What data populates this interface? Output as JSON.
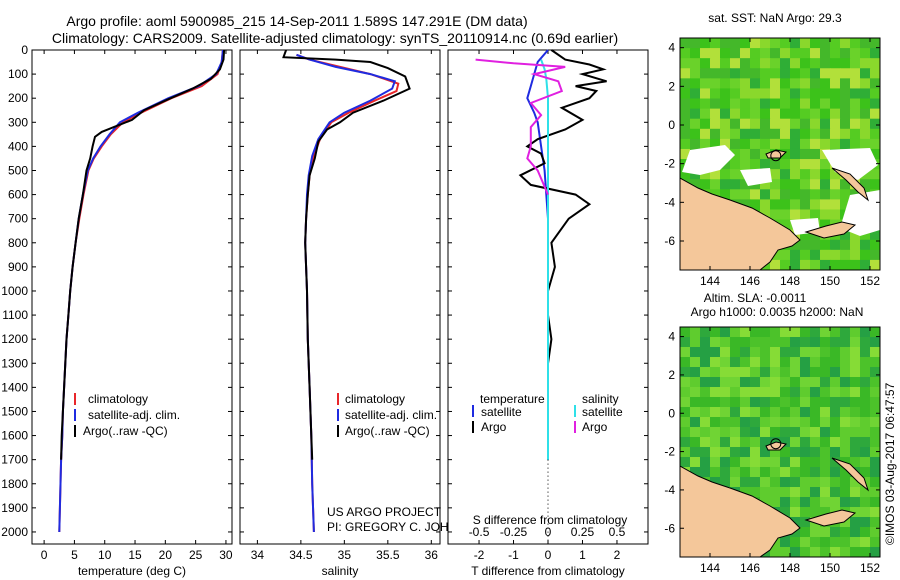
{
  "title_line1": "Argo profile: aoml 5900985_215 14-Sep-2011 1.589S 147.291E (DM data)",
  "title_line2": "Climatology: CARS2009. Satellite-adjusted climatology: synTS_20110914.nc (0.69d earlier)",
  "credit_line1": "US ARGO PROJECT",
  "credit_line2": "PI: GREGORY C. JOHNSON",
  "watermark": "©IMOS 03-Aug-2017 06:47:57",
  "colors": {
    "climatology": "#e8262a",
    "satellite": "#1f2be0",
    "argo": "#000000",
    "sal_satellite": "#2fe0e8",
    "sal_argo": "#e020e0",
    "land": "#f4c79a"
  },
  "chart_data": [
    {
      "id": "temperature",
      "type": "line",
      "xlabel": "temperature (deg C)",
      "ylabel": "depth",
      "xlim": [
        -2,
        31
      ],
      "ylim": [
        2050,
        0
      ],
      "xticks": [
        0,
        5,
        10,
        15,
        20,
        25,
        30
      ],
      "yticks": [
        0,
        100,
        200,
        300,
        400,
        500,
        600,
        700,
        800,
        900,
        1000,
        1100,
        1200,
        1300,
        1400,
        1500,
        1600,
        1700,
        1800,
        1900,
        2000
      ],
      "legend": [
        "climatology",
        "satellite-adj. clim.",
        "Argo(..raw -QC)"
      ],
      "series": [
        {
          "name": "climatology",
          "color": "#e8262a",
          "points": [
            [
              29.5,
              0
            ],
            [
              29.3,
              50
            ],
            [
              28.6,
              100
            ],
            [
              26,
              150
            ],
            [
              21,
              200
            ],
            [
              16,
              260
            ],
            [
              13,
              300
            ],
            [
              11,
              350
            ],
            [
              9.5,
              400
            ],
            [
              8.2,
              450
            ],
            [
              7.3,
              500
            ],
            [
              6.5,
              600
            ],
            [
              5.8,
              700
            ],
            [
              5.2,
              800
            ],
            [
              4.7,
              900
            ],
            [
              4.3,
              1000
            ],
            [
              4,
              1100
            ],
            [
              3.7,
              1200
            ],
            [
              3.5,
              1300
            ],
            [
              3.3,
              1400
            ],
            [
              3.1,
              1500
            ],
            [
              3,
              1600
            ],
            [
              2.8,
              1700
            ],
            [
              2.7,
              1800
            ],
            [
              2.6,
              1900
            ],
            [
              2.5,
              2000
            ]
          ]
        },
        {
          "name": "satellite-adj. clim.",
          "color": "#1f2be0",
          "points": [
            [
              29.5,
              0
            ],
            [
              29.3,
              50
            ],
            [
              28.4,
              100
            ],
            [
              25.5,
              150
            ],
            [
              20.5,
              200
            ],
            [
              15.5,
              260
            ],
            [
              12.5,
              300
            ],
            [
              10.8,
              350
            ],
            [
              9.3,
              400
            ],
            [
              8.1,
              450
            ],
            [
              7.2,
              500
            ],
            [
              6.4,
              600
            ],
            [
              5.7,
              700
            ],
            [
              5.2,
              800
            ],
            [
              4.7,
              900
            ],
            [
              4.3,
              1000
            ],
            [
              4,
              1100
            ],
            [
              3.7,
              1200
            ],
            [
              3.5,
              1300
            ],
            [
              3.3,
              1400
            ],
            [
              3.1,
              1500
            ],
            [
              3,
              1600
            ],
            [
              2.8,
              1700
            ],
            [
              2.7,
              1800
            ],
            [
              2.6,
              1900
            ],
            [
              2.5,
              2000
            ]
          ]
        },
        {
          "name": "Argo(..raw -QC)",
          "color": "#000000",
          "points": [
            [
              29.7,
              0
            ],
            [
              29.6,
              40
            ],
            [
              29,
              80
            ],
            [
              27.5,
              120
            ],
            [
              24.5,
              160
            ],
            [
              20,
              210
            ],
            [
              16.5,
              250
            ],
            [
              14.5,
              290
            ],
            [
              11.5,
              320
            ],
            [
              9.5,
              340
            ],
            [
              8.4,
              360
            ],
            [
              8,
              400
            ],
            [
              7.6,
              450
            ],
            [
              7,
              500
            ],
            [
              6.4,
              600
            ],
            [
              5.7,
              700
            ],
            [
              5.2,
              800
            ],
            [
              4.7,
              900
            ],
            [
              4.3,
              1000
            ],
            [
              4,
              1100
            ],
            [
              3.7,
              1200
            ],
            [
              3.5,
              1300
            ],
            [
              3.3,
              1400
            ],
            [
              3.1,
              1500
            ],
            [
              2.9,
              1600
            ],
            [
              2.8,
              1700
            ]
          ]
        }
      ]
    },
    {
      "id": "salinity",
      "type": "line",
      "xlabel": "salinity",
      "xlim": [
        33.8,
        36.1
      ],
      "ylim": [
        2050,
        0
      ],
      "xticks": [
        34,
        34.5,
        35,
        35.5,
        36
      ],
      "legend": [
        "climatology",
        "satellite-adj. clim.",
        "Argo(..raw -QC)"
      ],
      "series": [
        {
          "name": "climatology",
          "color": "#e8262a",
          "points": [
            [
              34.45,
              20
            ],
            [
              34.6,
              40
            ],
            [
              34.95,
              70
            ],
            [
              35.3,
              100
            ],
            [
              35.62,
              140
            ],
            [
              35.6,
              170
            ],
            [
              35.35,
              210
            ],
            [
              35.05,
              260
            ],
            [
              34.85,
              300
            ],
            [
              34.72,
              370
            ],
            [
              34.65,
              440
            ],
            [
              34.6,
              520
            ],
            [
              34.58,
              600
            ],
            [
              34.56,
              700
            ],
            [
              34.55,
              800
            ],
            [
              34.56,
              900
            ],
            [
              34.57,
              1000
            ],
            [
              34.58,
              1200
            ],
            [
              34.6,
              1400
            ],
            [
              34.62,
              1600
            ],
            [
              34.63,
              1800
            ],
            [
              34.65,
              2000
            ]
          ]
        },
        {
          "name": "satellite-adj. clim.",
          "color": "#1f2be0",
          "points": [
            [
              34.45,
              20
            ],
            [
              34.6,
              40
            ],
            [
              34.9,
              70
            ],
            [
              35.3,
              100
            ],
            [
              35.58,
              130
            ],
            [
              35.55,
              160
            ],
            [
              35.3,
              210
            ],
            [
              35,
              260
            ],
            [
              34.83,
              300
            ],
            [
              34.7,
              370
            ],
            [
              34.63,
              440
            ],
            [
              34.59,
              520
            ],
            [
              34.57,
              600
            ],
            [
              34.56,
              700
            ],
            [
              34.55,
              800
            ],
            [
              34.56,
              900
            ],
            [
              34.57,
              1000
            ],
            [
              34.58,
              1200
            ],
            [
              34.6,
              1400
            ],
            [
              34.62,
              1600
            ],
            [
              34.63,
              1800
            ],
            [
              34.65,
              2000
            ]
          ]
        },
        {
          "name": "Argo(..raw -QC)",
          "color": "#000000",
          "points": [
            [
              34.33,
              0
            ],
            [
              34.3,
              30
            ],
            [
              34.9,
              40
            ],
            [
              35.3,
              50
            ],
            [
              35.5,
              75
            ],
            [
              35.7,
              110
            ],
            [
              35.75,
              160
            ],
            [
              35.45,
              210
            ],
            [
              35.1,
              260
            ],
            [
              34.95,
              300
            ],
            [
              34.8,
              330
            ],
            [
              34.7,
              380
            ],
            [
              34.66,
              450
            ],
            [
              34.6,
              520
            ],
            [
              34.58,
              600
            ],
            [
              34.56,
              700
            ],
            [
              34.55,
              800
            ],
            [
              34.56,
              900
            ],
            [
              34.57,
              1000
            ],
            [
              34.58,
              1200
            ],
            [
              34.6,
              1400
            ],
            [
              34.62,
              1600
            ],
            [
              34.63,
              1700
            ]
          ]
        }
      ]
    },
    {
      "id": "differences",
      "type": "line",
      "xlabel": "T difference from climatology",
      "xlabel2": "S difference from climatology",
      "xlim": [
        -2.9,
        2.9
      ],
      "ylim": [
        2050,
        0
      ],
      "xticks": [
        -2,
        -1,
        0,
        1,
        2
      ],
      "xticks_top": [
        -0.5,
        -0.25,
        0,
        0.25,
        0.5
      ],
      "legend_headers": [
        "temperature",
        "salinity"
      ],
      "legend": [
        "satellite",
        "Argo",
        "satellite",
        "Argo"
      ],
      "series": [
        {
          "name": "temperature satellite",
          "color": "#1f2be0",
          "points": [
            [
              0,
              0
            ],
            [
              -0.3,
              50
            ],
            [
              -0.4,
              100
            ],
            [
              -0.5,
              150
            ],
            [
              -0.6,
              200
            ],
            [
              -0.4,
              260
            ],
            [
              -0.3,
              300
            ],
            [
              -0.2,
              400
            ],
            [
              -0.1,
              500
            ],
            [
              0,
              700
            ],
            [
              0,
              1000
            ],
            [
              0,
              1300
            ],
            [
              0,
              1500
            ],
            [
              0,
              1700
            ]
          ]
        },
        {
          "name": "temperature Argo",
          "color": "#000000",
          "points": [
            [
              0.1,
              0
            ],
            [
              0.5,
              40
            ],
            [
              1.2,
              60
            ],
            [
              1.6,
              80
            ],
            [
              1.0,
              100
            ],
            [
              1.7,
              130
            ],
            [
              0.8,
              150
            ],
            [
              1.4,
              170
            ],
            [
              1.2,
              200
            ],
            [
              0.4,
              240
            ],
            [
              1.0,
              290
            ],
            [
              0.5,
              330
            ],
            [
              -0.3,
              370
            ],
            [
              -0.6,
              400
            ],
            [
              -0.2,
              430
            ],
            [
              -0.1,
              470
            ],
            [
              -0.8,
              520
            ],
            [
              -0.5,
              560
            ],
            [
              0.8,
              600
            ],
            [
              1.2,
              640
            ],
            [
              0.6,
              700
            ],
            [
              0.1,
              800
            ],
            [
              0.2,
              900
            ],
            [
              0,
              1000
            ],
            [
              0,
              1100
            ],
            [
              0.1,
              1200
            ],
            [
              0,
              1300
            ],
            [
              0,
              1400
            ],
            [
              0,
              1500
            ],
            [
              0,
              1700
            ]
          ]
        },
        {
          "name": "salinity satellite",
          "color": "#2fe0e8",
          "points": [
            [
              -0.2,
              40
            ],
            [
              -0.1,
              80
            ],
            [
              -0.05,
              120
            ],
            [
              0,
              200
            ],
            [
              0,
              300
            ],
            [
              0,
              400
            ],
            [
              0,
              600
            ],
            [
              0,
              800
            ],
            [
              0,
              1000
            ],
            [
              0,
              1200
            ],
            [
              0,
              1400
            ],
            [
              0,
              1600
            ],
            [
              0,
              1700
            ]
          ]
        },
        {
          "name": "salinity Argo",
          "color": "#e020e0",
          "points": [
            [
              -2.1,
              40
            ],
            [
              -1,
              55
            ],
            [
              0.5,
              70
            ],
            [
              -0.4,
              100
            ],
            [
              0.3,
              130
            ],
            [
              0.4,
              170
            ],
            [
              -0.5,
              220
            ],
            [
              -0.2,
              270
            ],
            [
              -0.5,
              320
            ],
            [
              -0.5,
              400
            ],
            [
              -0.6,
              450
            ],
            [
              -0.3,
              500
            ],
            [
              0,
              600
            ]
          ]
        }
      ]
    },
    {
      "id": "map-sst",
      "type": "heatmap",
      "title": "sat. SST: NaN Argo: 29.3",
      "xlim": [
        142.5,
        152.5
      ],
      "ylim": [
        -7.5,
        4.5
      ],
      "xticks": [
        144,
        146,
        148,
        150,
        152
      ],
      "yticks": [
        -6,
        -4,
        -2,
        0,
        2,
        4
      ],
      "marker": [
        147.29,
        -1.59
      ]
    },
    {
      "id": "map-sla",
      "type": "heatmap",
      "title": "Altim. SLA: -0.0011",
      "title2": "Argo h1000: 0.0035 h2000: NaN",
      "xlim": [
        142.5,
        152.5
      ],
      "ylim": [
        -7.5,
        4.5
      ],
      "xticks": [
        144,
        146,
        148,
        150,
        152
      ],
      "yticks": [
        -6,
        -4,
        -2,
        0,
        2,
        4
      ],
      "marker": [
        147.29,
        -1.59
      ]
    }
  ]
}
